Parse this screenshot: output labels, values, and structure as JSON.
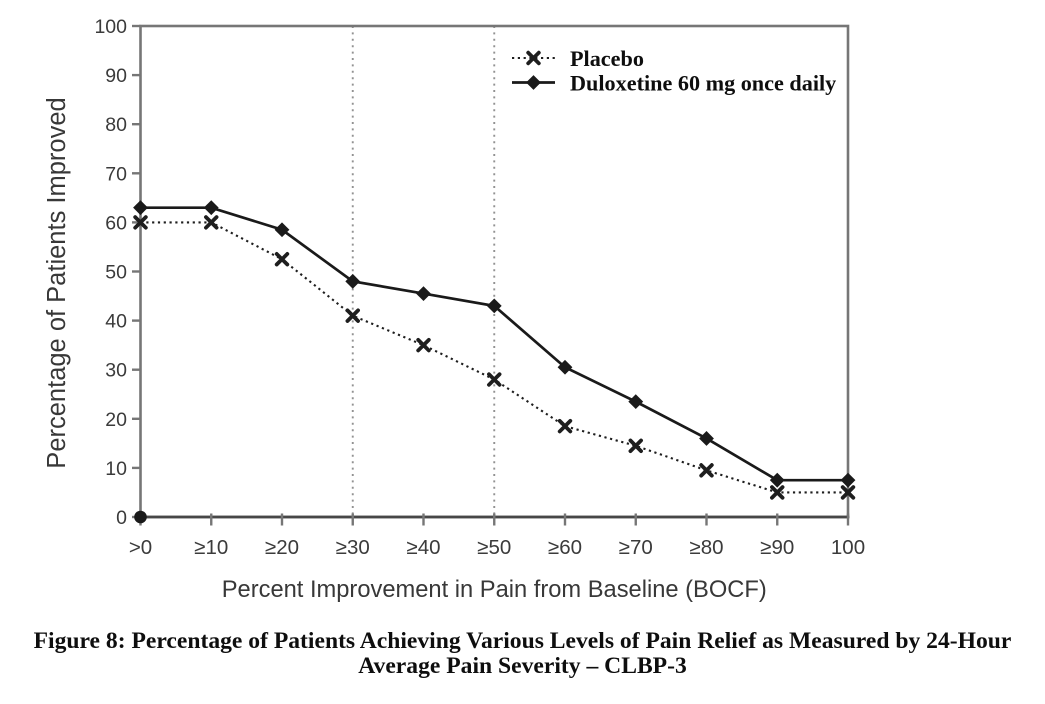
{
  "page": {
    "background_color": "#ffffff",
    "kind": "document-figure"
  },
  "chart_data": {
    "type": "line",
    "title": "",
    "categories": [
      ">0",
      "≥10",
      "≥20",
      "≥30",
      "≥40",
      "≥50",
      "≥60",
      "≥70",
      "≥80",
      "≥90",
      "100"
    ],
    "series": [
      {
        "name": "Placebo",
        "line_style": "dotted",
        "marker": "x",
        "color": "#1e1e1e",
        "values": [
          60,
          60,
          52.5,
          41,
          35,
          28,
          18.5,
          14.5,
          9.5,
          5,
          5
        ]
      },
      {
        "name": "Duloxetine 60 mg once daily",
        "line_style": "solid",
        "marker": "diamond",
        "color": "#1a1a1a",
        "values": [
          63,
          63,
          58.5,
          48,
          45.5,
          43,
          30.5,
          23.5,
          16,
          7.5,
          7.5
        ]
      }
    ],
    "xlabel": "Percent Improvement in Pain from Baseline (BOCF)",
    "ylabel": "Percentage of Patients Improved",
    "ylim": [
      0,
      100
    ],
    "yticks": [
      0,
      10,
      20,
      30,
      40,
      50,
      60,
      70,
      80,
      90,
      100
    ],
    "reference_lines_at_categories": [
      "≥30",
      "≥50"
    ],
    "origin_marker": {
      "category": ">0",
      "value": 0,
      "shape": "dot"
    },
    "legend_position": "top-right-inside",
    "grid": "vertical-dotted-reference-lines-only",
    "frame": "full-box",
    "colors": {
      "frame": "#767676",
      "x_axis": "#474747",
      "series": "#1a1a1a",
      "reference_line": "#929292",
      "tick_label": "#3b3b3b",
      "axis_title": "#383838",
      "legend_text": "#0e0e0e"
    }
  },
  "caption": {
    "line1": "Figure 8: Percentage of Patients Achieving Various Levels of Pain Relief as Measured by 24-Hour",
    "line2": "Average Pain Severity – CLBP-3"
  }
}
